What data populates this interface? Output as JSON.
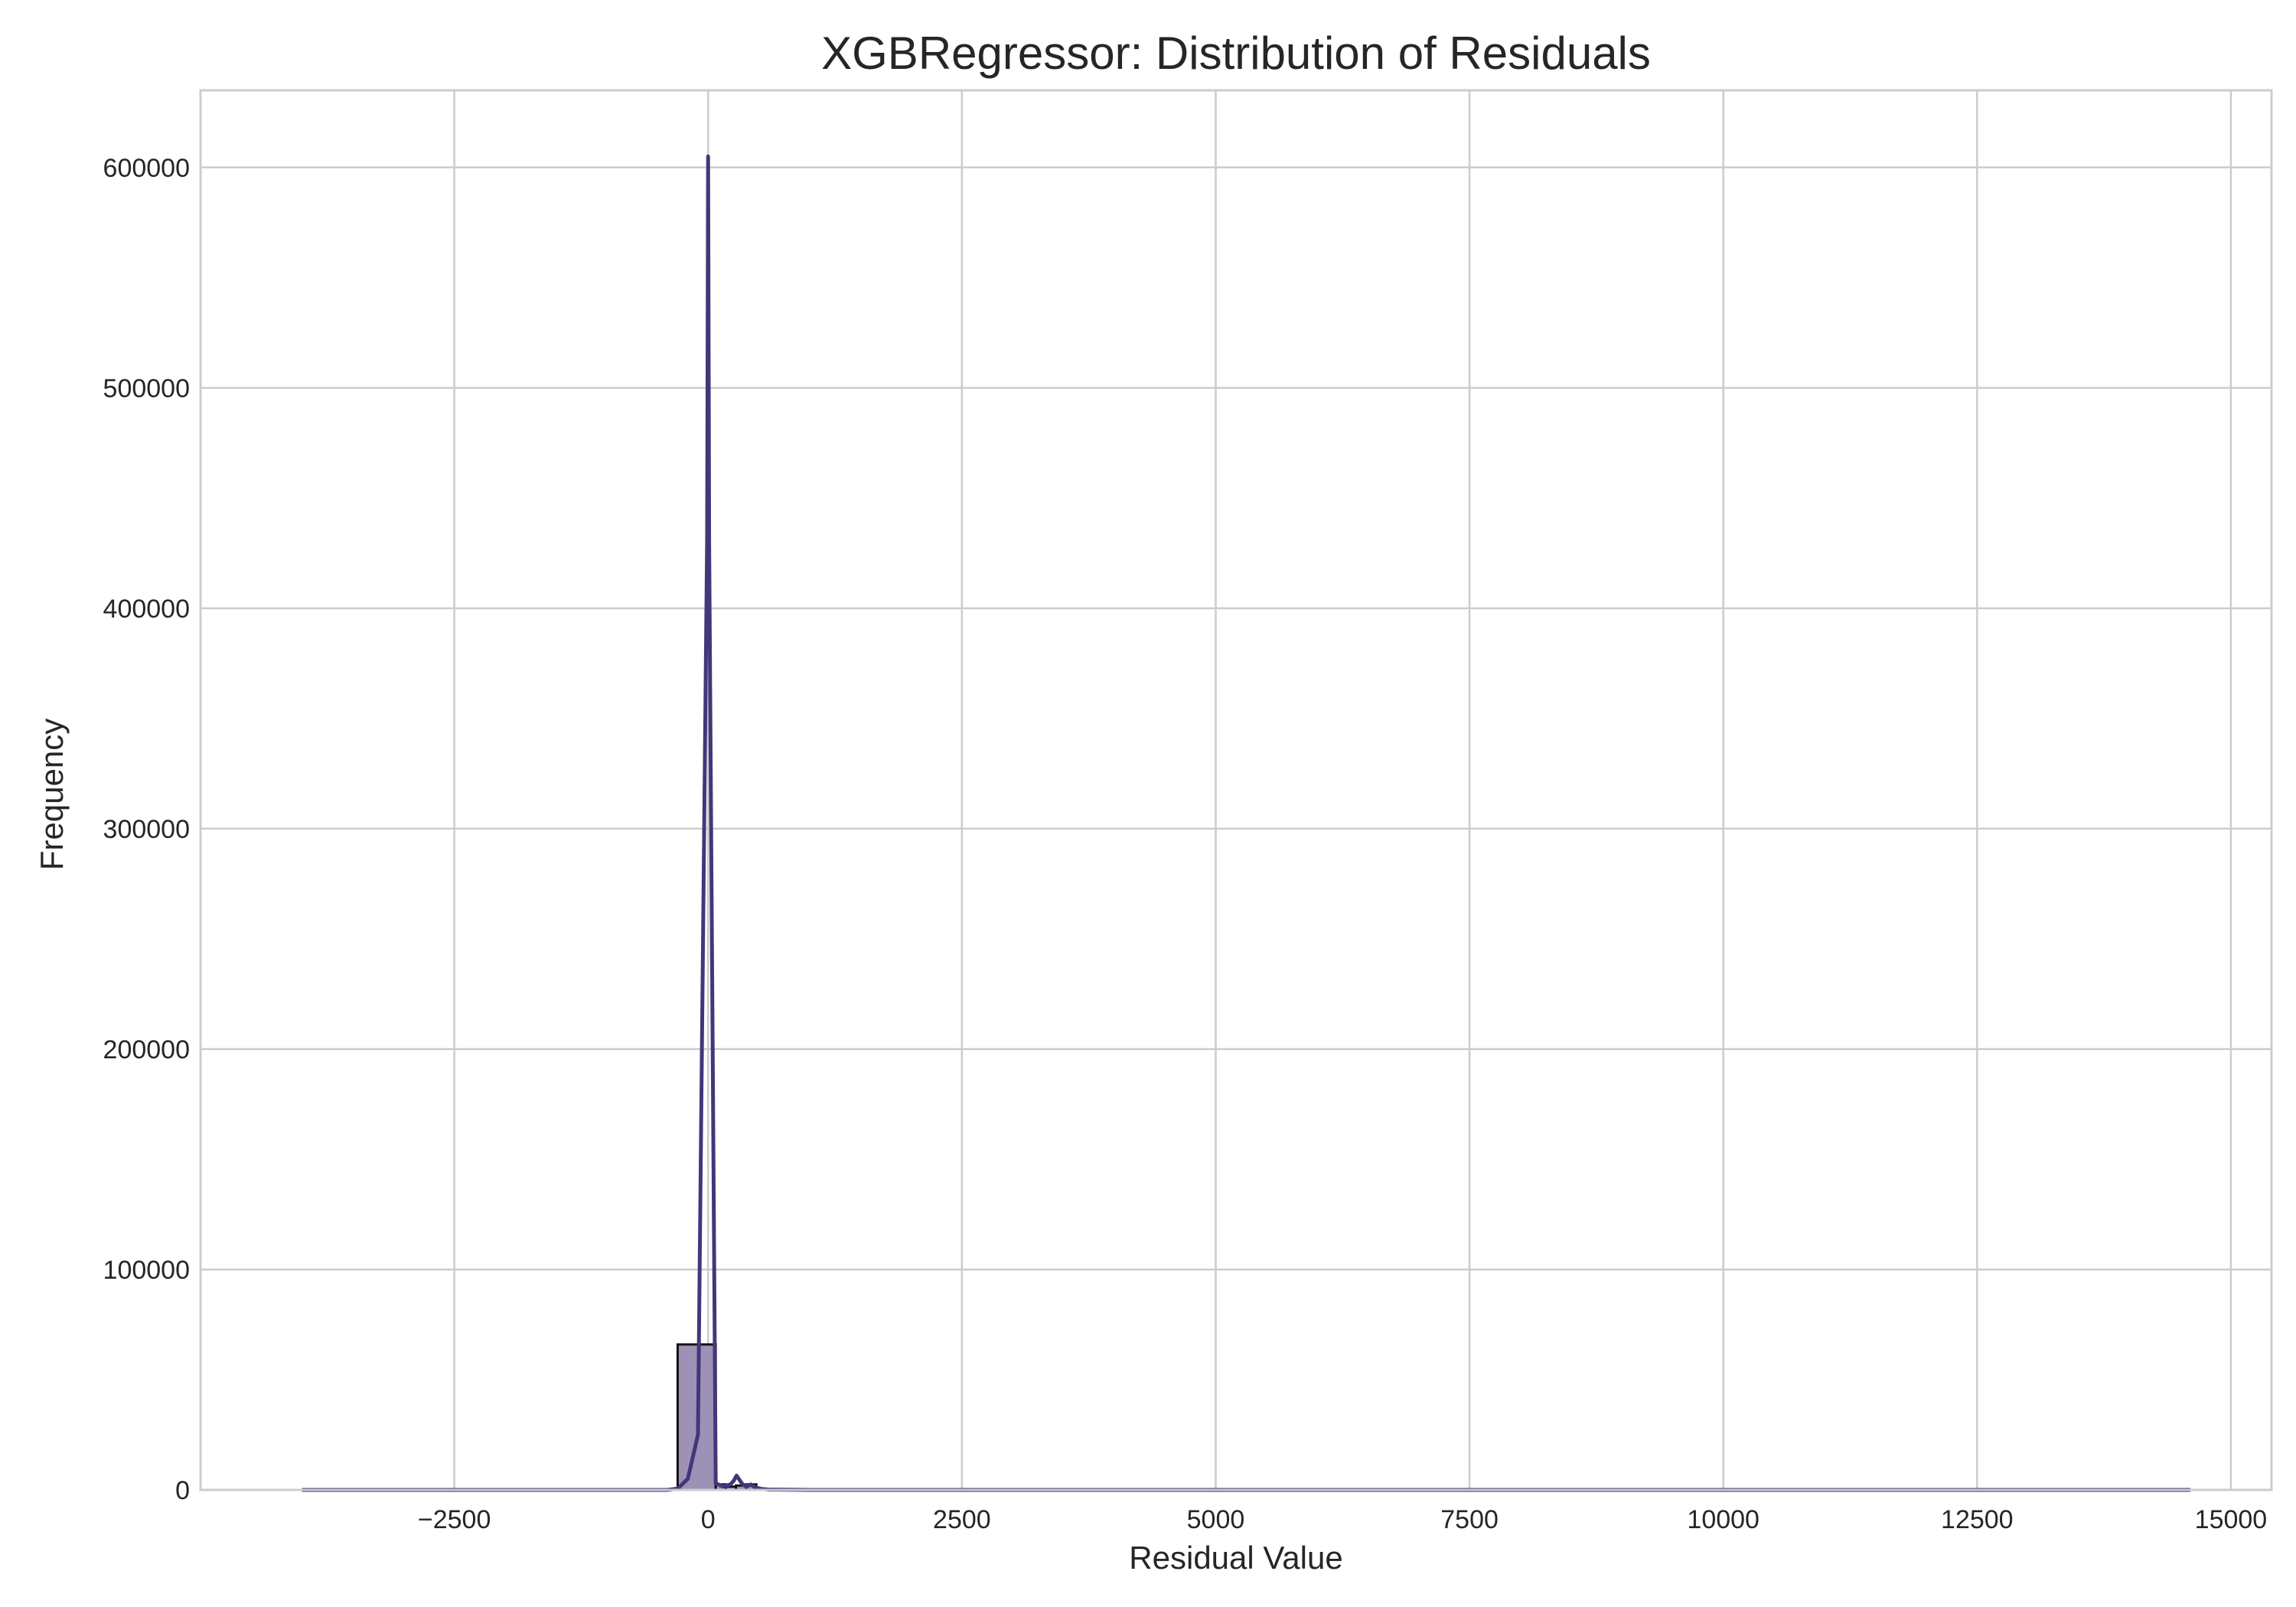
{
  "chart_data": {
    "type": "histogram",
    "title": "XGBRegressor: Distribution of Residuals",
    "xlabel": "Residual Value",
    "ylabel": "Frequency",
    "xlim": [
      -5000,
      15400
    ],
    "ylim": [
      0,
      635000
    ],
    "xticks": [
      -2500,
      0,
      2500,
      5000,
      7500,
      10000,
      12500,
      15000
    ],
    "xtick_labels": [
      "−2500",
      "0",
      "2500",
      "5000",
      "7500",
      "10000",
      "12500",
      "15000"
    ],
    "yticks": [
      0,
      100000,
      200000,
      300000,
      400000,
      500000,
      600000
    ],
    "ytick_labels": [
      "0",
      "100000",
      "200000",
      "300000",
      "400000",
      "500000",
      "600000"
    ],
    "grid": true,
    "bins": [
      {
        "x0": -300,
        "x1": 75,
        "count": 66000
      },
      {
        "x0": 75,
        "x1": 175,
        "count": 2500
      },
      {
        "x0": 175,
        "x1": 275,
        "count": 1500
      },
      {
        "x0": 275,
        "x1": 375,
        "count": 2000
      },
      {
        "x0": 375,
        "x1": 475,
        "count": 2500
      },
      {
        "x0": 475,
        "x1": 575,
        "count": 500
      }
    ],
    "kde": {
      "x": [
        -4000,
        -400,
        -300,
        -200,
        -100,
        -10,
        0,
        10,
        75,
        150,
        220,
        250,
        280,
        310,
        340,
        380,
        420,
        460,
        520,
        600,
        1000,
        14600
      ],
      "y": [
        0,
        0,
        600,
        5000,
        25000,
        430000,
        605000,
        430000,
        3000,
        1500,
        2500,
        4000,
        6500,
        4500,
        2500,
        1500,
        2500,
        1200,
        500,
        150,
        0,
        0
      ]
    },
    "colors": {
      "bar_fill": "#9d92b5",
      "bar_edge": "#111111",
      "kde_line": "#433779",
      "baseline": "#9b95c9"
    }
  }
}
